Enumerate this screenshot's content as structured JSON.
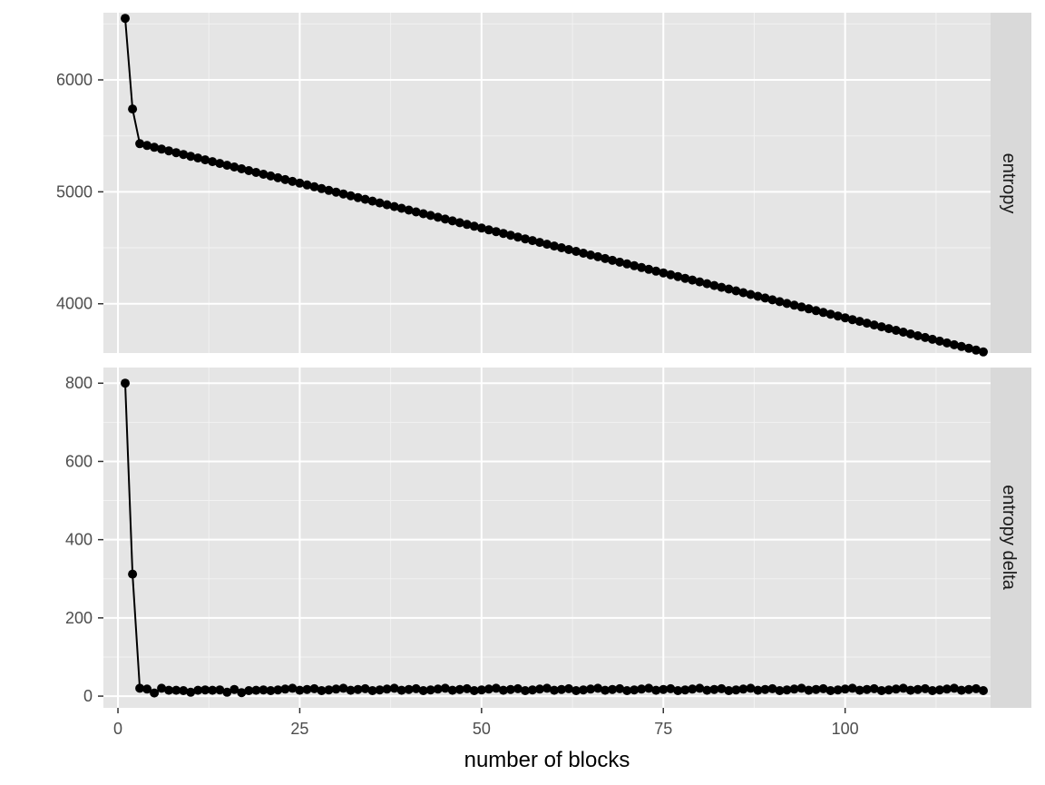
{
  "chart_data": {
    "type": "line",
    "xlabel": "number of blocks",
    "x_ticks": [
      0,
      25,
      50,
      75,
      100
    ],
    "xlim": [
      -2,
      120
    ],
    "grid": true,
    "panels": [
      {
        "strip_label": "entropy",
        "ylim": [
          3560,
          6600
        ],
        "y_ticks": [
          4000,
          5000,
          6000
        ],
        "series": [
          {
            "x": [
              1,
              2
            ],
            "y": [
              6550,
              5740
            ]
          }
        ],
        "segments": [
          {
            "x_start": 3,
            "x_end": 119,
            "y_start": 5430,
            "y_end": 3570
          }
        ]
      },
      {
        "strip_label": "entropy delta",
        "ylim": [
          -30,
          840
        ],
        "y_ticks": [
          0,
          200,
          400,
          600,
          800
        ],
        "series": [
          {
            "x": [
              1,
              2,
              3,
              4,
              5,
              6,
              7,
              8,
              9,
              10,
              11,
              12,
              13,
              14,
              15,
              16,
              17,
              18,
              19,
              20
            ],
            "y": [
              800,
              312,
              20,
              18,
              8,
              20,
              15,
              15,
              14,
              10,
              15,
              16,
              15,
              16,
              10,
              17,
              9,
              14,
              15,
              16
            ]
          }
        ],
        "tail": {
          "x_start": 21,
          "x_end": 119,
          "y_mean": 17
        }
      }
    ]
  }
}
